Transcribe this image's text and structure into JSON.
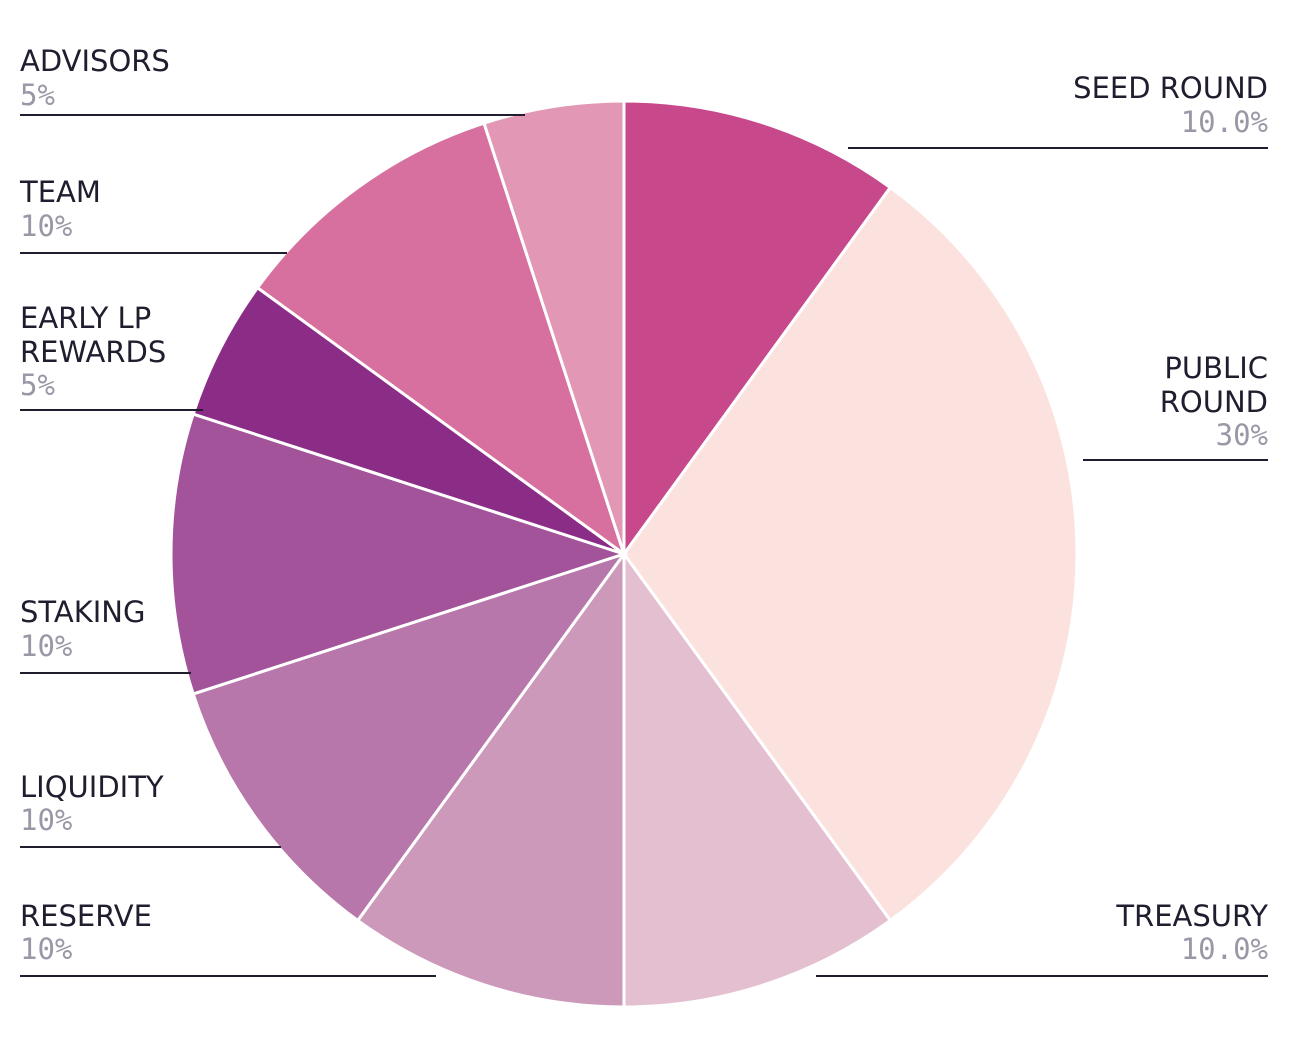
{
  "chart_data": {
    "type": "pie",
    "slices": [
      {
        "name": "SEED ROUND",
        "pct_label": "10.0%",
        "value": 10,
        "color": "#c8488c"
      },
      {
        "name": "PUBLIC ROUND",
        "pct_label": "30%",
        "value": 30,
        "color": "#fce2df"
      },
      {
        "name": "TREASURY",
        "pct_label": "10.0%",
        "value": 10,
        "color": "#e3bfcf"
      },
      {
        "name": "RESERVE",
        "pct_label": "10%",
        "value": 10,
        "color": "#cc99bb"
      },
      {
        "name": "LIQUIDITY",
        "pct_label": "10%",
        "value": 10,
        "color": "#b877aa"
      },
      {
        "name": "STAKING",
        "pct_label": "10%",
        "value": 10,
        "color": "#a25399"
      },
      {
        "name": "EARLY LP REWARDS",
        "pct_label": "5%",
        "value": 5,
        "color": "#8b2c86"
      },
      {
        "name": "TEAM",
        "pct_label": "10%",
        "value": 10,
        "color": "#d7709f"
      },
      {
        "name": "ADVISORS",
        "pct_label": "5%",
        "value": 5,
        "color": "#e297b5"
      }
    ]
  }
}
